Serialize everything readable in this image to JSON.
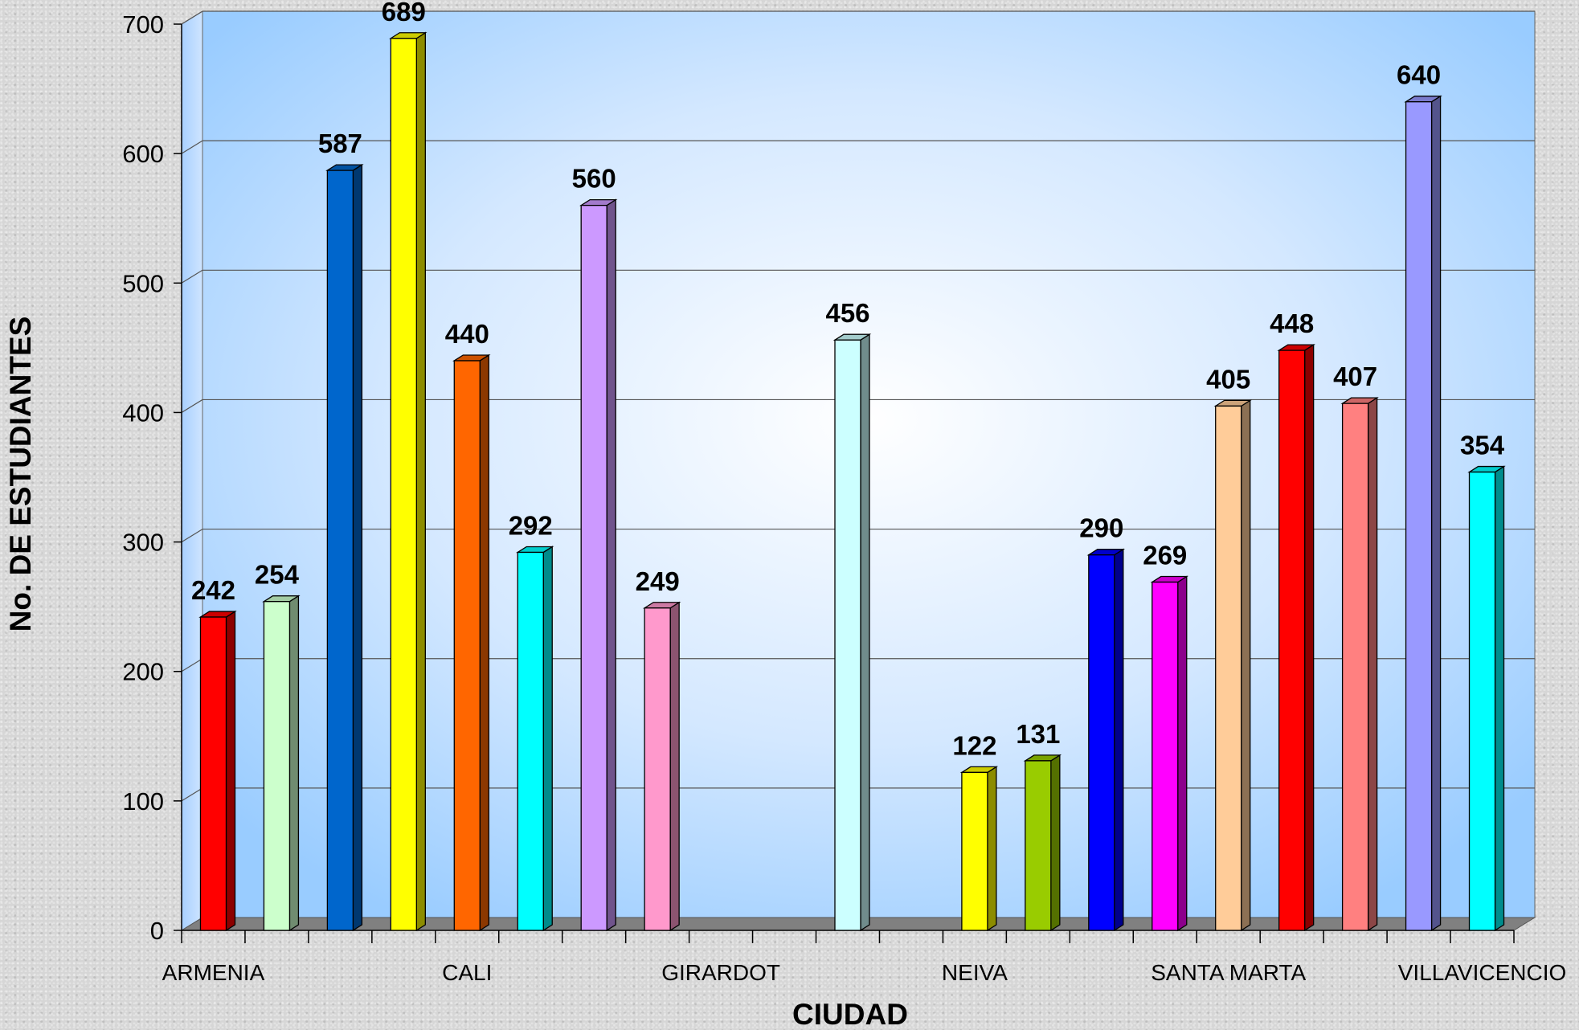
{
  "chart_data": {
    "type": "bar",
    "xlabel": "CIUDAD",
    "ylabel": "No. DE ESTUDIANTES",
    "ylim": [
      0,
      700
    ],
    "yticks": [
      0,
      100,
      200,
      300,
      400,
      500,
      600,
      700
    ],
    "grid": true,
    "slots": 21,
    "category_labels": [
      {
        "slot": 0,
        "text": "ARMENIA"
      },
      {
        "slot": 4,
        "text": "CALI"
      },
      {
        "slot": 8,
        "text": "GIRARDOT"
      },
      {
        "slot": 12,
        "text": "NEIVA"
      },
      {
        "slot": 16,
        "text": "SANTA MARTA"
      },
      {
        "slot": 20,
        "text": "VILLAVICENCIO"
      }
    ],
    "bars": [
      {
        "slot": 0,
        "value": 242,
        "color": "#ff0000"
      },
      {
        "slot": 1,
        "value": 254,
        "color": "#ccffcc"
      },
      {
        "slot": 2,
        "value": 587,
        "color": "#0066cc"
      },
      {
        "slot": 3,
        "value": 689,
        "color": "#ffff00"
      },
      {
        "slot": 4,
        "value": 440,
        "color": "#ff6600"
      },
      {
        "slot": 5,
        "value": 292,
        "color": "#00ffff"
      },
      {
        "slot": 6,
        "value": 560,
        "color": "#cc99ff"
      },
      {
        "slot": 7,
        "value": 249,
        "color": "#ff99cc"
      },
      {
        "slot": 10,
        "value": 456,
        "color": "#ccffff"
      },
      {
        "slot": 12,
        "value": 122,
        "color": "#ffff00"
      },
      {
        "slot": 13,
        "value": 131,
        "color": "#99cc00"
      },
      {
        "slot": 14,
        "value": 290,
        "color": "#0000ff"
      },
      {
        "slot": 15,
        "value": 269,
        "color": "#ff00ff"
      },
      {
        "slot": 16,
        "value": 405,
        "color": "#ffcc99"
      },
      {
        "slot": 17,
        "value": 448,
        "color": "#ff0000"
      },
      {
        "slot": 18,
        "value": 407,
        "color": "#ff8080"
      },
      {
        "slot": 19,
        "value": 640,
        "color": "#9999ff"
      },
      {
        "slot": 20,
        "value": 354,
        "color": "#00ffff"
      }
    ]
  }
}
